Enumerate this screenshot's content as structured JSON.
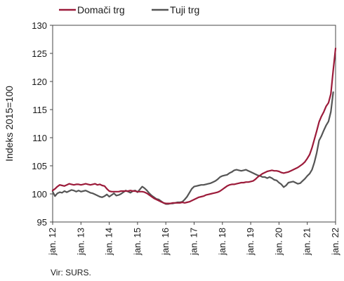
{
  "chart_data": {
    "type": "line",
    "ylabel": "Indeks 2015=100",
    "ylim": [
      95,
      130
    ],
    "yticks": [
      95,
      100,
      105,
      110,
      115,
      120,
      125,
      130
    ],
    "xlim": [
      0,
      120
    ],
    "xticks": [
      {
        "label": "jan. 12",
        "x": 0
      },
      {
        "label": "jan. 13",
        "x": 12
      },
      {
        "label": "jan. 14",
        "x": 24
      },
      {
        "label": "jan. 15",
        "x": 36
      },
      {
        "label": "jan. 16",
        "x": 48
      },
      {
        "label": "jan. 17",
        "x": 60
      },
      {
        "label": "jan. 18",
        "x": 72
      },
      {
        "label": "jan. 19",
        "x": 84
      },
      {
        "label": "jan. 20",
        "x": 96
      },
      {
        "label": "jan. 21",
        "x": 108
      },
      {
        "label": "jan. 22",
        "x": 120
      }
    ],
    "grid": false,
    "legend": "top-left",
    "source": "Vir: SURS.",
    "series": [
      {
        "name": "Domači trg",
        "color": "#9c1b3a",
        "points": [
          [
            0,
            100.6
          ],
          [
            1,
            100.9
          ],
          [
            2,
            101.3
          ],
          [
            3,
            101.6
          ],
          [
            4,
            101.5
          ],
          [
            5,
            101.4
          ],
          [
            6,
            101.6
          ],
          [
            7,
            101.8
          ],
          [
            8,
            101.7
          ],
          [
            9,
            101.6
          ],
          [
            10,
            101.7
          ],
          [
            11,
            101.7
          ],
          [
            12,
            101.6
          ],
          [
            13,
            101.7
          ],
          [
            14,
            101.8
          ],
          [
            15,
            101.7
          ],
          [
            16,
            101.6
          ],
          [
            17,
            101.7
          ],
          [
            18,
            101.8
          ],
          [
            19,
            101.6
          ],
          [
            20,
            101.7
          ],
          [
            21,
            101.5
          ],
          [
            22,
            101.4
          ],
          [
            23,
            100.9
          ],
          [
            24,
            100.5
          ],
          [
            25,
            100.4
          ],
          [
            26,
            100.4
          ],
          [
            27,
            100.4
          ],
          [
            28,
            100.4
          ],
          [
            29,
            100.5
          ],
          [
            30,
            100.5
          ],
          [
            31,
            100.5
          ],
          [
            32,
            100.5
          ],
          [
            33,
            100.6
          ],
          [
            34,
            100.5
          ],
          [
            35,
            100.5
          ],
          [
            36,
            100.4
          ],
          [
            37,
            100.4
          ],
          [
            38,
            100.4
          ],
          [
            39,
            100.3
          ],
          [
            40,
            100.1
          ],
          [
            41,
            99.8
          ],
          [
            42,
            99.5
          ],
          [
            43,
            99.2
          ],
          [
            44,
            99.0
          ],
          [
            45,
            98.8
          ],
          [
            46,
            98.6
          ],
          [
            47,
            98.4
          ],
          [
            48,
            98.3
          ],
          [
            49,
            98.3
          ],
          [
            50,
            98.3
          ],
          [
            51,
            98.4
          ],
          [
            52,
            98.4
          ],
          [
            53,
            98.4
          ],
          [
            54,
            98.4
          ],
          [
            55,
            98.5
          ],
          [
            56,
            98.4
          ],
          [
            57,
            98.5
          ],
          [
            58,
            98.6
          ],
          [
            59,
            98.8
          ],
          [
            60,
            99.0
          ],
          [
            61,
            99.2
          ],
          [
            62,
            99.4
          ],
          [
            63,
            99.5
          ],
          [
            64,
            99.6
          ],
          [
            65,
            99.8
          ],
          [
            66,
            99.9
          ],
          [
            67,
            100.0
          ],
          [
            68,
            100.1
          ],
          [
            69,
            100.2
          ],
          [
            70,
            100.3
          ],
          [
            71,
            100.5
          ],
          [
            72,
            100.8
          ],
          [
            73,
            101.1
          ],
          [
            74,
            101.4
          ],
          [
            75,
            101.6
          ],
          [
            76,
            101.7
          ],
          [
            77,
            101.7
          ],
          [
            78,
            101.8
          ],
          [
            79,
            101.9
          ],
          [
            80,
            102.0
          ],
          [
            81,
            102.0
          ],
          [
            82,
            102.1
          ],
          [
            83,
            102.1
          ],
          [
            84,
            102.2
          ],
          [
            85,
            102.3
          ],
          [
            86,
            102.6
          ],
          [
            87,
            103.0
          ],
          [
            88,
            103.3
          ],
          [
            89,
            103.6
          ],
          [
            90,
            103.8
          ],
          [
            91,
            104.0
          ],
          [
            92,
            104.1
          ],
          [
            93,
            104.2
          ],
          [
            94,
            104.1
          ],
          [
            95,
            104.1
          ],
          [
            96,
            104.0
          ],
          [
            97,
            103.8
          ],
          [
            98,
            103.7
          ],
          [
            99,
            103.8
          ],
          [
            100,
            103.9
          ],
          [
            101,
            104.1
          ],
          [
            102,
            104.3
          ],
          [
            103,
            104.5
          ],
          [
            104,
            104.7
          ],
          [
            105,
            105.0
          ],
          [
            106,
            105.3
          ],
          [
            107,
            105.7
          ],
          [
            108,
            106.3
          ],
          [
            109,
            107.0
          ],
          [
            110,
            108.2
          ],
          [
            111,
            109.7
          ],
          [
            112,
            111.2
          ],
          [
            113,
            112.8
          ],
          [
            114,
            113.8
          ],
          [
            115,
            114.6
          ],
          [
            116,
            115.6
          ],
          [
            117,
            116.2
          ],
          [
            118,
            117.8
          ],
          [
            119,
            122.0
          ],
          [
            120,
            125.9
          ]
        ]
      },
      {
        "name": "Tuji trg",
        "color": "#555555",
        "points": [
          [
            0,
            100.4
          ],
          [
            1,
            99.6
          ],
          [
            2,
            100.1
          ],
          [
            3,
            100.3
          ],
          [
            4,
            100.2
          ],
          [
            5,
            100.5
          ],
          [
            6,
            100.3
          ],
          [
            7,
            100.5
          ],
          [
            8,
            100.7
          ],
          [
            9,
            100.6
          ],
          [
            10,
            100.4
          ],
          [
            11,
            100.6
          ],
          [
            12,
            100.4
          ],
          [
            13,
            100.5
          ],
          [
            14,
            100.6
          ],
          [
            15,
            100.4
          ],
          [
            16,
            100.2
          ],
          [
            17,
            100.1
          ],
          [
            18,
            99.9
          ],
          [
            19,
            99.7
          ],
          [
            20,
            99.5
          ],
          [
            21,
            99.4
          ],
          [
            22,
            99.6
          ],
          [
            23,
            99.9
          ],
          [
            24,
            99.5
          ],
          [
            25,
            99.8
          ],
          [
            26,
            100.1
          ],
          [
            27,
            99.7
          ],
          [
            28,
            99.8
          ],
          [
            29,
            100.0
          ],
          [
            30,
            100.3
          ],
          [
            31,
            100.6
          ],
          [
            32,
            100.4
          ],
          [
            33,
            100.2
          ],
          [
            34,
            100.5
          ],
          [
            35,
            100.6
          ],
          [
            36,
            100.3
          ],
          [
            37,
            100.8
          ],
          [
            38,
            101.3
          ],
          [
            39,
            101.0
          ],
          [
            40,
            100.6
          ],
          [
            41,
            100.1
          ],
          [
            42,
            99.7
          ],
          [
            43,
            99.4
          ],
          [
            44,
            99.1
          ],
          [
            45,
            99.0
          ],
          [
            46,
            98.7
          ],
          [
            47,
            98.4
          ],
          [
            48,
            98.2
          ],
          [
            49,
            98.2
          ],
          [
            50,
            98.3
          ],
          [
            51,
            98.3
          ],
          [
            52,
            98.4
          ],
          [
            53,
            98.5
          ],
          [
            54,
            98.5
          ],
          [
            55,
            98.6
          ],
          [
            56,
            99.0
          ],
          [
            57,
            99.5
          ],
          [
            58,
            100.2
          ],
          [
            59,
            100.9
          ],
          [
            60,
            101.3
          ],
          [
            61,
            101.4
          ],
          [
            62,
            101.5
          ],
          [
            63,
            101.6
          ],
          [
            64,
            101.6
          ],
          [
            65,
            101.7
          ],
          [
            66,
            101.8
          ],
          [
            67,
            101.9
          ],
          [
            68,
            102.1
          ],
          [
            69,
            102.3
          ],
          [
            70,
            102.6
          ],
          [
            71,
            103.0
          ],
          [
            72,
            103.2
          ],
          [
            73,
            103.3
          ],
          [
            74,
            103.4
          ],
          [
            75,
            103.7
          ],
          [
            76,
            103.9
          ],
          [
            77,
            104.2
          ],
          [
            78,
            104.3
          ],
          [
            79,
            104.2
          ],
          [
            80,
            104.1
          ],
          [
            81,
            104.2
          ],
          [
            82,
            104.3
          ],
          [
            83,
            104.1
          ],
          [
            84,
            103.9
          ],
          [
            85,
            103.7
          ],
          [
            86,
            103.5
          ],
          [
            87,
            103.3
          ],
          [
            88,
            103.2
          ],
          [
            89,
            103.0
          ],
          [
            90,
            103.0
          ],
          [
            91,
            102.8
          ],
          [
            92,
            103.0
          ],
          [
            93,
            102.8
          ],
          [
            94,
            102.5
          ],
          [
            95,
            102.4
          ],
          [
            96,
            102.0
          ],
          [
            97,
            101.7
          ],
          [
            98,
            101.2
          ],
          [
            99,
            101.5
          ],
          [
            100,
            102.0
          ],
          [
            101,
            102.1
          ],
          [
            102,
            102.2
          ],
          [
            103,
            102.0
          ],
          [
            104,
            101.8
          ],
          [
            105,
            101.9
          ],
          [
            106,
            102.3
          ],
          [
            107,
            102.7
          ],
          [
            108,
            103.2
          ],
          [
            109,
            103.6
          ],
          [
            110,
            104.3
          ],
          [
            111,
            105.6
          ],
          [
            112,
            107.3
          ],
          [
            113,
            109.5
          ],
          [
            114,
            110.3
          ],
          [
            115,
            111.3
          ],
          [
            116,
            112.2
          ],
          [
            117,
            112.9
          ],
          [
            118,
            114.6
          ],
          [
            119,
            118.1
          ]
        ]
      }
    ]
  }
}
